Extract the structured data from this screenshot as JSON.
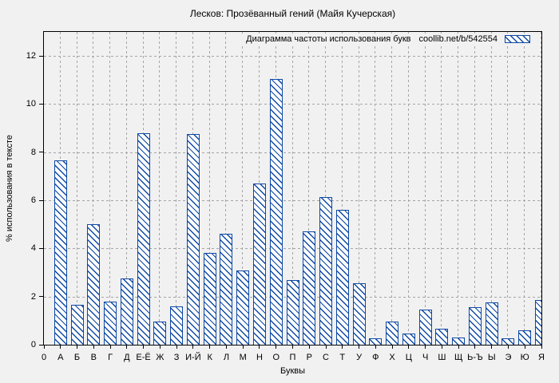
{
  "chart_data": {
    "type": "bar",
    "title": "Лесков: Прозёванный гений (Майя Кучерская)",
    "xlabel": "Буквы",
    "ylabel": "% использования в тексте",
    "legend": {
      "label": "Диаграмма частоты использования букв",
      "source": "coollib.net/b/542554",
      "position": "top-right"
    },
    "origin_tick_label": "0",
    "categories": [
      "А",
      "Б",
      "В",
      "Г",
      "Д",
      "Е-Ё",
      "Ж",
      "З",
      "И-Й",
      "К",
      "Л",
      "М",
      "Н",
      "О",
      "П",
      "Р",
      "С",
      "Т",
      "У",
      "Ф",
      "Х",
      "Ц",
      "Ч",
      "Ш",
      "Щ",
      "Ь-Ъ",
      "Ы",
      "Э",
      "Ю",
      "Я"
    ],
    "values": [
      7.65,
      1.65,
      5.0,
      1.8,
      2.75,
      8.8,
      0.95,
      1.6,
      8.75,
      3.8,
      4.6,
      3.1,
      6.7,
      11.05,
      2.7,
      4.7,
      6.15,
      5.6,
      2.55,
      0.25,
      0.95,
      0.45,
      1.45,
      0.65,
      0.3,
      1.55,
      1.75,
      0.25,
      0.6,
      1.85
    ],
    "ylim": [
      0,
      13
    ],
    "yticks": [
      0,
      2,
      4,
      6,
      8,
      10,
      12
    ],
    "grid": true,
    "hatch": "diagonal-backslash",
    "colors": {
      "bar_border": "#0d48a4",
      "bar_fill": "#ffffff",
      "grid": "#a5a5a5",
      "background": "#f1f1f1",
      "frame": "#000000"
    }
  }
}
